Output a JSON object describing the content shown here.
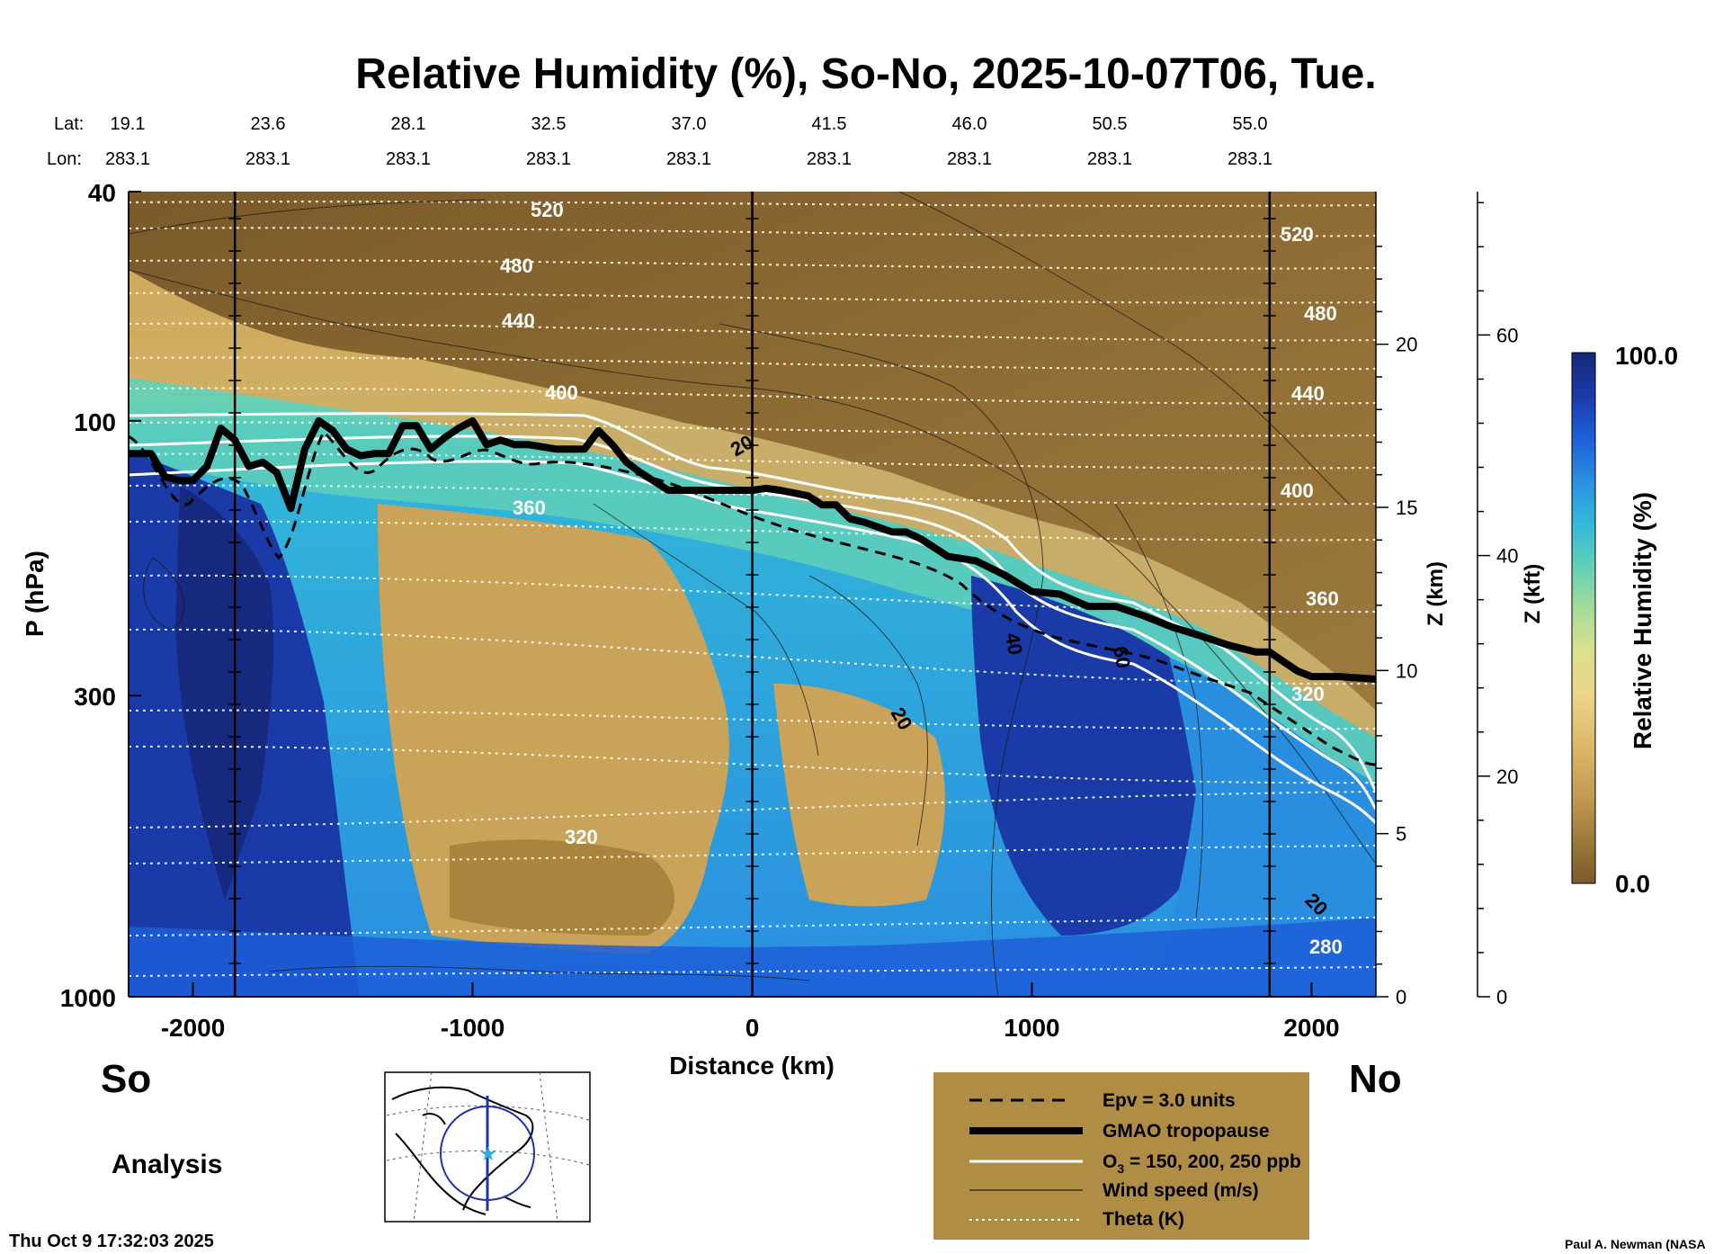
{
  "chart_data": {
    "type": "heatmap",
    "title": "Relative Humidity (%), So-No, 2025-10-07T06, Tue.",
    "lat_label": "Lat:",
    "lon_label": "Lon:",
    "lat_values": [
      "19.1",
      "23.6",
      "28.1",
      "32.5",
      "37.0",
      "41.5",
      "46.0",
      "50.5",
      "55.0"
    ],
    "lon_values": [
      "283.1",
      "283.1",
      "283.1",
      "283.1",
      "283.1",
      "283.1",
      "283.1",
      "283.1",
      "283.1"
    ],
    "xlabel": "Distance (km)",
    "ylabel": "P (hPa)",
    "xlim": [
      -2230,
      2230
    ],
    "ylim_hpa": [
      1000,
      40
    ],
    "x_ticks": [
      "-2000",
      "-1000",
      "0",
      "1000",
      "2000"
    ],
    "x_tick_values": [
      -2000,
      -1000,
      0,
      1000,
      2000
    ],
    "y_ticks": [
      "40",
      "100",
      "300",
      "1000"
    ],
    "y_tick_values": [
      40,
      100,
      300,
      1000
    ],
    "z_km_label": "Z (km)",
    "z_km_ticks": [
      "0",
      "5",
      "10",
      "15",
      "20"
    ],
    "z_km_values": [
      0,
      5,
      10,
      15,
      20
    ],
    "z_kft_label": "Z (kft)",
    "z_kft_ticks": [
      "0",
      "20",
      "40",
      "60"
    ],
    "z_kft_values": [
      0,
      20,
      40,
      60
    ],
    "colorbar": {
      "label": "Relative Humidity (%)",
      "max_label": "100.0",
      "min_label": "0.0",
      "colors": [
        "#7a5a2a",
        "#9c7a3c",
        "#bf9a52",
        "#dcb86a",
        "#ecd68a",
        "#d9e08e",
        "#a3dc9a",
        "#5fcfb8",
        "#32b8d8",
        "#2a8ee0",
        "#1d5ed8",
        "#1a3aa8",
        "#16287a"
      ]
    },
    "vertical_section_lines_km": [
      -1850,
      0,
      1850
    ],
    "tropopause": {
      "name": "GMAO tropopause",
      "x": [
        -2230,
        -2150,
        -2100,
        -2050,
        -2000,
        -1950,
        -1900,
        -1850,
        -1800,
        -1750,
        -1700,
        -1650,
        -1600,
        -1550,
        -1500,
        -1450,
        -1400,
        -1350,
        -1300,
        -1250,
        -1200,
        -1150,
        -1100,
        -1050,
        -1000,
        -950,
        -900,
        -850,
        -800,
        -700,
        -600,
        -550,
        -500,
        -450,
        -400,
        -300,
        -250,
        -100,
        0,
        50,
        100,
        200,
        250,
        300,
        350,
        400,
        500,
        550,
        600,
        700,
        800,
        900,
        1000,
        1100,
        1200,
        1300,
        1400,
        1500,
        1600,
        1700,
        1800,
        1850,
        1900,
        1950,
        2000,
        2100,
        2230
      ],
      "p_hpa": [
        114,
        114,
        125,
        127,
        127,
        120,
        103,
        108,
        120,
        118,
        123,
        142,
        112,
        100,
        104,
        112,
        115,
        114,
        114,
        102,
        102,
        112,
        107,
        103,
        100,
        110,
        108,
        110,
        110,
        112,
        112,
        104,
        110,
        118,
        123,
        132,
        132,
        132,
        132,
        131,
        132,
        135,
        140,
        140,
        148,
        150,
        156,
        156,
        160,
        172,
        175,
        185,
        198,
        200,
        210,
        210,
        218,
        228,
        236,
        245,
        252,
        252,
        262,
        272,
        278,
        278,
        281
      ]
    },
    "legend": {
      "items": [
        {
          "label": "Epv = 3.0 units",
          "style": "dashed-black"
        },
        {
          "label": "GMAO tropopause",
          "style": "thick-black"
        },
        {
          "label": "O",
          "sub": "3",
          "rest": " = 150, 200, 250 ppb",
          "style": "white"
        },
        {
          "label": "Wind speed (m/s)",
          "style": "thin-black"
        },
        {
          "label": "Theta (K)",
          "style": "dotted-white"
        }
      ]
    },
    "theta_labels": [
      "520",
      "480",
      "440",
      "400",
      "360",
      "320",
      "280",
      "520",
      "480",
      "440",
      "400",
      "360",
      "320"
    ],
    "wind_labels": [
      "20",
      "40",
      "60",
      "20",
      "20"
    ],
    "so_label": "So",
    "no_label": "No",
    "analysis_label": "Analysis",
    "timestamp": "Thu Oct  9 17:32:03 2025",
    "credit": "Paul A. Newman (NASA"
  }
}
